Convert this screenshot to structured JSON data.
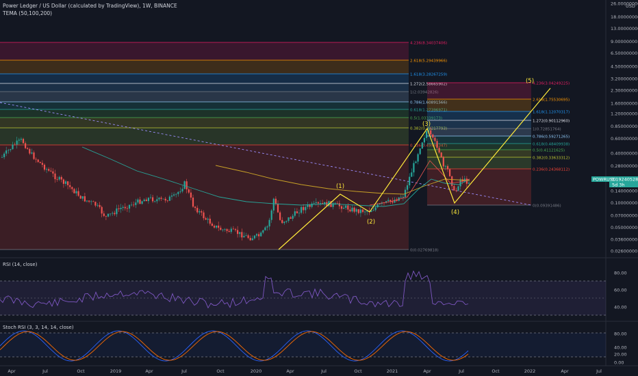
{
  "header": {
    "title": "Power Ledger / US Dollar (calculated by TradingView), 1W, BINANCE",
    "indicator": "TEMA (50,100,200)",
    "currency": "USD"
  },
  "price_axis": {
    "ticks": [
      "26.00000000",
      "18.00000000",
      "13.00000000",
      "9.00000000",
      "6.50000000",
      "4.50000000",
      "3.20000000",
      "2.30000000",
      "1.60000000",
      "1.20000000",
      "0.85000000",
      "0.60000000",
      "0.40000000",
      "0.28000000",
      "0.20000000",
      "0.14000000",
      "0.10000000",
      "0.07000000",
      "0.05000000",
      "0.03600000",
      "0.02600000"
    ],
    "last_price": "0.19240528",
    "ticker": "POWRUSD",
    "countdown": "5d 3h"
  },
  "rsi_axis": [
    "80.00",
    "60.00",
    "40.00"
  ],
  "stoch_axis": [
    "80.00",
    "40.00",
    "20.00",
    "0.00"
  ],
  "time_axis": [
    "Apr",
    "Jul",
    "Oct",
    "2019",
    "Apr",
    "Jul",
    "Oct",
    "2020",
    "Apr",
    "Jul",
    "Oct",
    "2021",
    "Apr",
    "Jul",
    "Oct",
    "2022",
    "Apr",
    "Jul"
  ],
  "panes": {
    "rsi": "RSI (14, close)",
    "stoch": "Stoch RSI (3, 3, 14, 14, close)"
  },
  "fib_big": [
    {
      "label": "4.236(8.34037406)",
      "color": "#e91e63"
    },
    {
      "label": "2.618(5.29439966)",
      "color": "#ff9800"
    },
    {
      "label": "1.618(3.28267259)",
      "color": "#2196f3"
    },
    {
      "label": "1.272(2.58665902)",
      "color": "#e0e3eb"
    },
    {
      "label": "1(2.03942826)",
      "color": "#787b86"
    },
    {
      "label": "0.786(1.60891566)",
      "color": "#90caf9"
    },
    {
      "label": "0.618(1.27396971)",
      "color": "#26a69a"
    },
    {
      "label": "0.5(1.03339173)",
      "color": "#4caf50"
    },
    {
      "label": "0.382(0.79217793)",
      "color": "#c0ca33"
    },
    {
      "label": "0.236(0.49998347)",
      "color": "#f44336"
    },
    {
      "label": "0(0.02769818)",
      "color": "#787b86"
    }
  ],
  "fib_small": [
    {
      "label": "4.236(3.04249225)",
      "color": "#e91e63"
    },
    {
      "label": "2.618(1.75530695)",
      "color": "#ff9800"
    },
    {
      "label": "1.618(1.12070317)",
      "color": "#2196f3"
    },
    {
      "label": "1.272(0.90112960)",
      "color": "#e0e3eb"
    },
    {
      "label": "1(0.72851764)",
      "color": "#787b86"
    },
    {
      "label": "0.786(0.59271265)",
      "color": "#90caf9"
    },
    {
      "label": "0.618(0.48409938)",
      "color": "#26a69a"
    },
    {
      "label": "0.5(0.41121625)",
      "color": "#4caf50"
    },
    {
      "label": "0.382(0.33633312)",
      "color": "#c0ca33"
    },
    {
      "label": "0.236(0.24368112)",
      "color": "#f44336"
    },
    {
      "label": "0(0.09391486)",
      "color": "#787b86"
    }
  ],
  "waves": [
    "(1)",
    "(2)",
    "(3)",
    "(4)",
    "(5)"
  ],
  "chart_data": {
    "type": "line",
    "title": "Power Ledger / US Dollar (calculated by TradingView), 1W, BINANCE",
    "scale": "log",
    "elliott_wave": [
      {
        "label": "(1)",
        "price": 0.145
      },
      {
        "label": "(2)",
        "price": 0.075
      },
      {
        "label": "(3)",
        "price": 0.66
      },
      {
        "label": "(4)",
        "price": 0.105
      },
      {
        "label": "(5)",
        "price": 2.6
      }
    ],
    "last_close": 0.19240528
  },
  "colors": {
    "up": "#26a69a",
    "down": "#ef5350",
    "wave": "#ffeb3b",
    "rsi": "#7e57c2",
    "stoch_k": "#2962ff",
    "stoch_d": "#ff6d00"
  }
}
